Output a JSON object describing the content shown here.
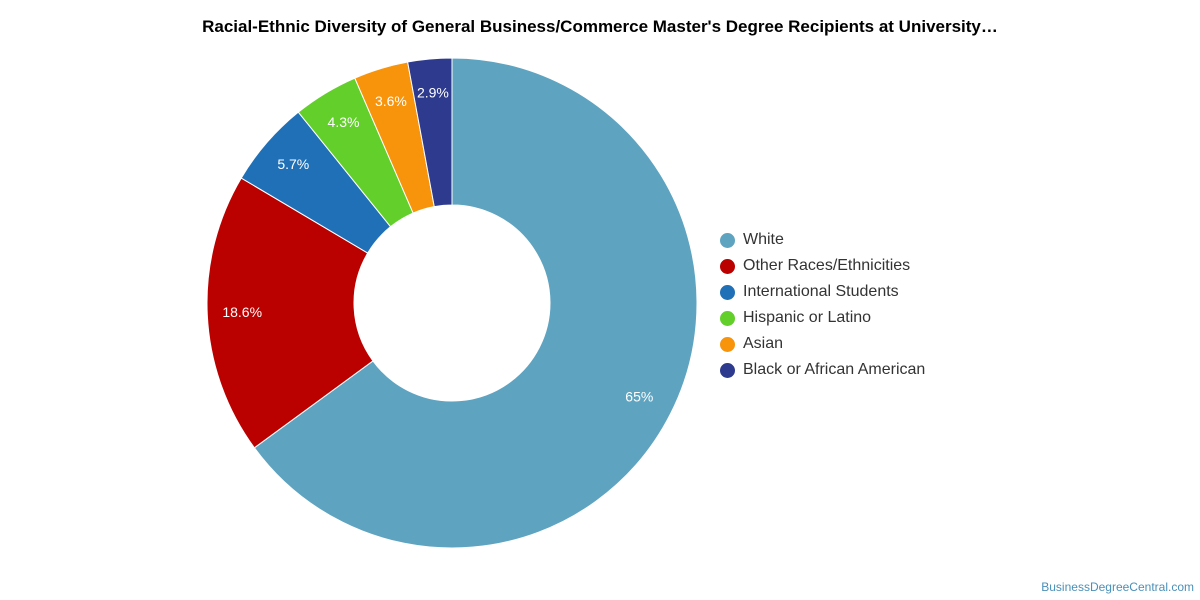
{
  "chart_data": {
    "type": "pie",
    "title": "Racial-Ethnic Diversity of General Business/Commerce Master's Degree Recipients at University…",
    "categories": [
      "White",
      "Other Races/Ethnicities",
      "International Students",
      "Hispanic or Latino",
      "Asian",
      "Black or African American"
    ],
    "values": [
      65,
      18.6,
      5.7,
      4.3,
      3.6,
      2.9
    ],
    "labels": [
      "65%",
      "18.6%",
      "5.7%",
      "4.3%",
      "3.6%",
      "2.9%"
    ],
    "colors": [
      "#5ea3c0",
      "#bb0000",
      "#1f70b7",
      "#62cf2b",
      "#f7940c",
      "#2d3a8e"
    ],
    "donut": true,
    "legend_position": "right"
  },
  "credit": "BusinessDegreeCentral.com"
}
